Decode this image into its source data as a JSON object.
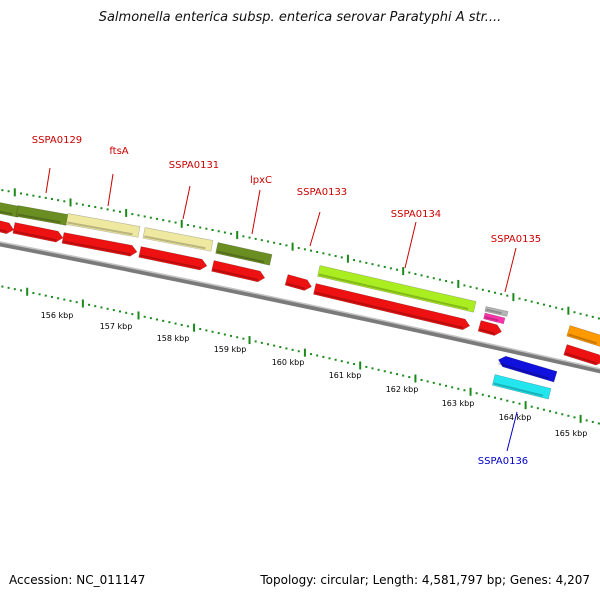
{
  "title": "Salmonella enterica subsp. enterica serovar Paratyphi A str....",
  "footer": {
    "accession": "Accession: NC_011147",
    "summary": "Topology: circular; Length: 4,581,797 bp; Genes: 4,207"
  },
  "colors": {
    "cds_red": "#ee1111",
    "olive": "#6b8e23",
    "khaki": "#eee8a0",
    "lime": "#aaee22",
    "blue": "#1111dd",
    "cyan": "#22e5ee",
    "orange": "#ff9900",
    "label_red": "#cc0000",
    "label_blue": "#0000cc",
    "tick_green": "#1a8a1a"
  },
  "labels": [
    {
      "text": "SSPA0129",
      "color": "red"
    },
    {
      "text": "ftsA",
      "color": "red"
    },
    {
      "text": "SSPA0131",
      "color": "red"
    },
    {
      "text": "lpxC",
      "color": "red"
    },
    {
      "text": "SSPA0133",
      "color": "red"
    },
    {
      "text": "SSPA0134",
      "color": "red"
    },
    {
      "text": "SSPA0135",
      "color": "red"
    },
    {
      "text": "SSPA0136",
      "color": "blue"
    }
  ],
  "scale_ticks": [
    "156 kbp",
    "157 kbp",
    "158 kbp",
    "159 kbp",
    "160 kbp",
    "161 kbp",
    "162 kbp",
    "163 kbp",
    "164 kbp",
    "165 kbp"
  ]
}
